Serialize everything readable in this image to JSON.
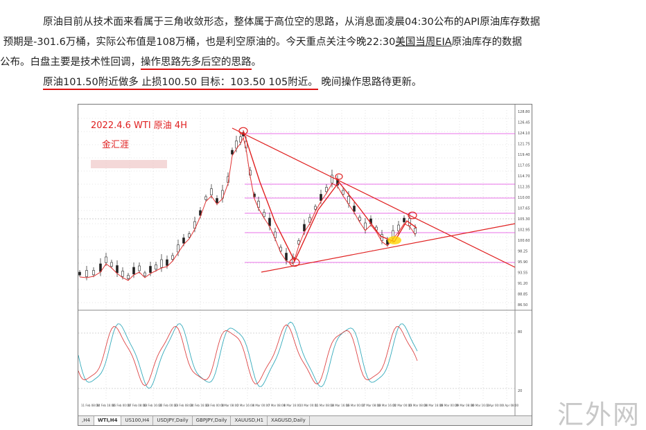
{
  "article": {
    "line1": "原油目前从技术面来看属于三角收敛形态，整体属于高位空的思路，从消息面凌晨04:30公布的API原油库存数据",
    "line2": "预期是-301.6万桶，实际公布值是108万桶，也是利空原油的。今天重点关注今晚22:30",
    "line2_link": "美国当周EIA",
    "line2_tail": "原油库存的数据",
    "line3_head": "公布。白盘主要是技术性回调，",
    "line3_underlined": "操作思路先多后空的思路",
    "line3_tail": "。",
    "line4_underlined": "原油101.50附近做多 止损100.50 目标：103.50 105附近。",
    "line4_tail": " 晚间操作思路待更新。"
  },
  "chart": {
    "title": "2022.4.6 WTI 原油 4H",
    "author": "金汇涯",
    "price_labels": [
      "128.80",
      "126.45",
      "124.10",
      "121.75",
      "119.40",
      "117.05",
      "114.70",
      "112.35",
      "110.00",
      "107.65",
      "105.30",
      "102.95",
      "100.60",
      "98.25",
      "95.90",
      "93.55",
      "91.20",
      "88.85",
      "86.50"
    ],
    "osc_labels": [
      "80",
      "20"
    ],
    "date_labels": [
      "11 Feb 08:00",
      "14 Feb 16:00",
      "16 Feb 00:00",
      "17 Feb 08:00",
      "18 Feb 16:00",
      "22 Feb 00:00",
      "23 Feb 08:00",
      "24 Feb 16:00",
      "28 Feb 00:00",
      "1 Mar 08:00",
      "2 Mar 16:00",
      "4 Mar 00:00",
      "7 Mar 08:00",
      "8 Mar 16:00",
      "10 Mar 00:00",
      "11 Mar 08:00",
      "14 Mar 16:00",
      "16 Mar 00:00",
      "17 Mar 08:00",
      "18 Mar 16:00",
      "22 Mar 00:00",
      "23 Mar 08:00",
      "24 Mar 16:00",
      "28 Mar 00:00",
      "29 Mar 08:00",
      "30 Mar 16:00",
      "1 Apr 00:00",
      "4 Apr 08:00"
    ],
    "tabs": [
      ",H4",
      "WTI,H4",
      "US100,H4",
      "USDJPY,Daily",
      "GBPJPY,Daily",
      "XAUUSD,H1",
      "XAGUSD,Daily"
    ],
    "colors": {
      "candle": "#222222",
      "ma_line": "#e03030",
      "trend_line": "#e02020",
      "fib_line": "#e040e0",
      "title_red": "#e02020",
      "osc_cyan": "#33aabb",
      "osc_red": "#dd4444"
    }
  },
  "watermark": "汇外网"
}
